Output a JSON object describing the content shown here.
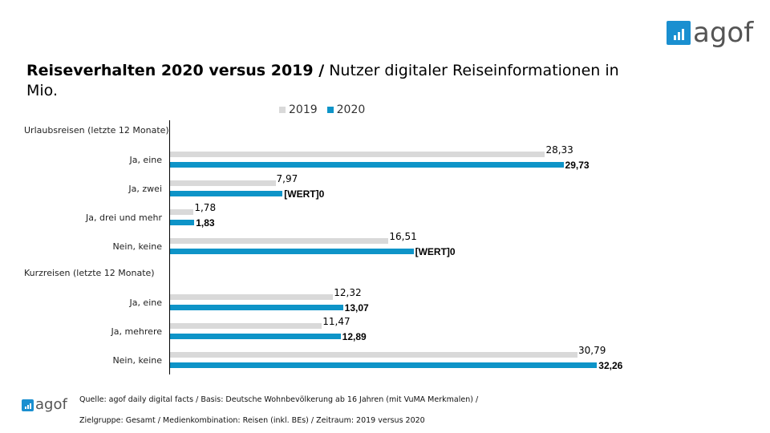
{
  "header": {
    "title_bold": "Reiseverhalten 2020 versus 2019 /",
    "title_rest": " Nutzer digitaler Reiseinformationen in Mio.",
    "logo_text": "agof"
  },
  "footer": {
    "logo_text": "agof",
    "source_line1": "Quelle: agof daily digital facts / Basis: Deutsche Wohnbevölkerung ab 16 Jahren (mit VuMA Merkmalen) /",
    "source_line2": "Zielgruppe: Gesamt / Medienkombination: Reisen (inkl. BEs) / Zeitraum: 2019 versus 2020"
  },
  "chart_data": {
    "type": "bar",
    "orientation": "horizontal",
    "legend_position": "top",
    "series": [
      {
        "name": "2019",
        "color": "#d9d9d9"
      },
      {
        "name": "2020",
        "color": "#0e94c8"
      }
    ],
    "groups": [
      {
        "label": "Urlaubsreisen (letzte 12 Monate)",
        "categories": [
          {
            "label": "Ja, eine",
            "values": [
              28.33,
              29.73
            ],
            "labels": [
              "28,33",
              "29,73"
            ]
          },
          {
            "label": "Ja, zwei",
            "values": [
              7.97,
              8.5
            ],
            "labels": [
              "7,97",
              "[WERT]0"
            ]
          },
          {
            "label": "Ja, drei und mehr",
            "values": [
              1.78,
              1.83
            ],
            "labels": [
              "1,78",
              "1,83"
            ]
          },
          {
            "label": "Nein, keine",
            "values": [
              16.51,
              18.4
            ],
            "labels": [
              "16,51",
              "[WERT]0"
            ]
          }
        ]
      },
      {
        "label": "Kurzreisen (letzte 12 Monate)",
        "categories": [
          {
            "label": "Ja, eine",
            "values": [
              12.32,
              13.07
            ],
            "labels": [
              "12,32",
              "13,07"
            ]
          },
          {
            "label": "Ja, mehrere",
            "values": [
              11.47,
              12.89
            ],
            "labels": [
              "11,47",
              "12,89"
            ]
          },
          {
            "label": "Nein, keine",
            "values": [
              30.79,
              32.26
            ],
            "labels": [
              "30,79",
              "32,26"
            ]
          }
        ]
      }
    ]
  }
}
